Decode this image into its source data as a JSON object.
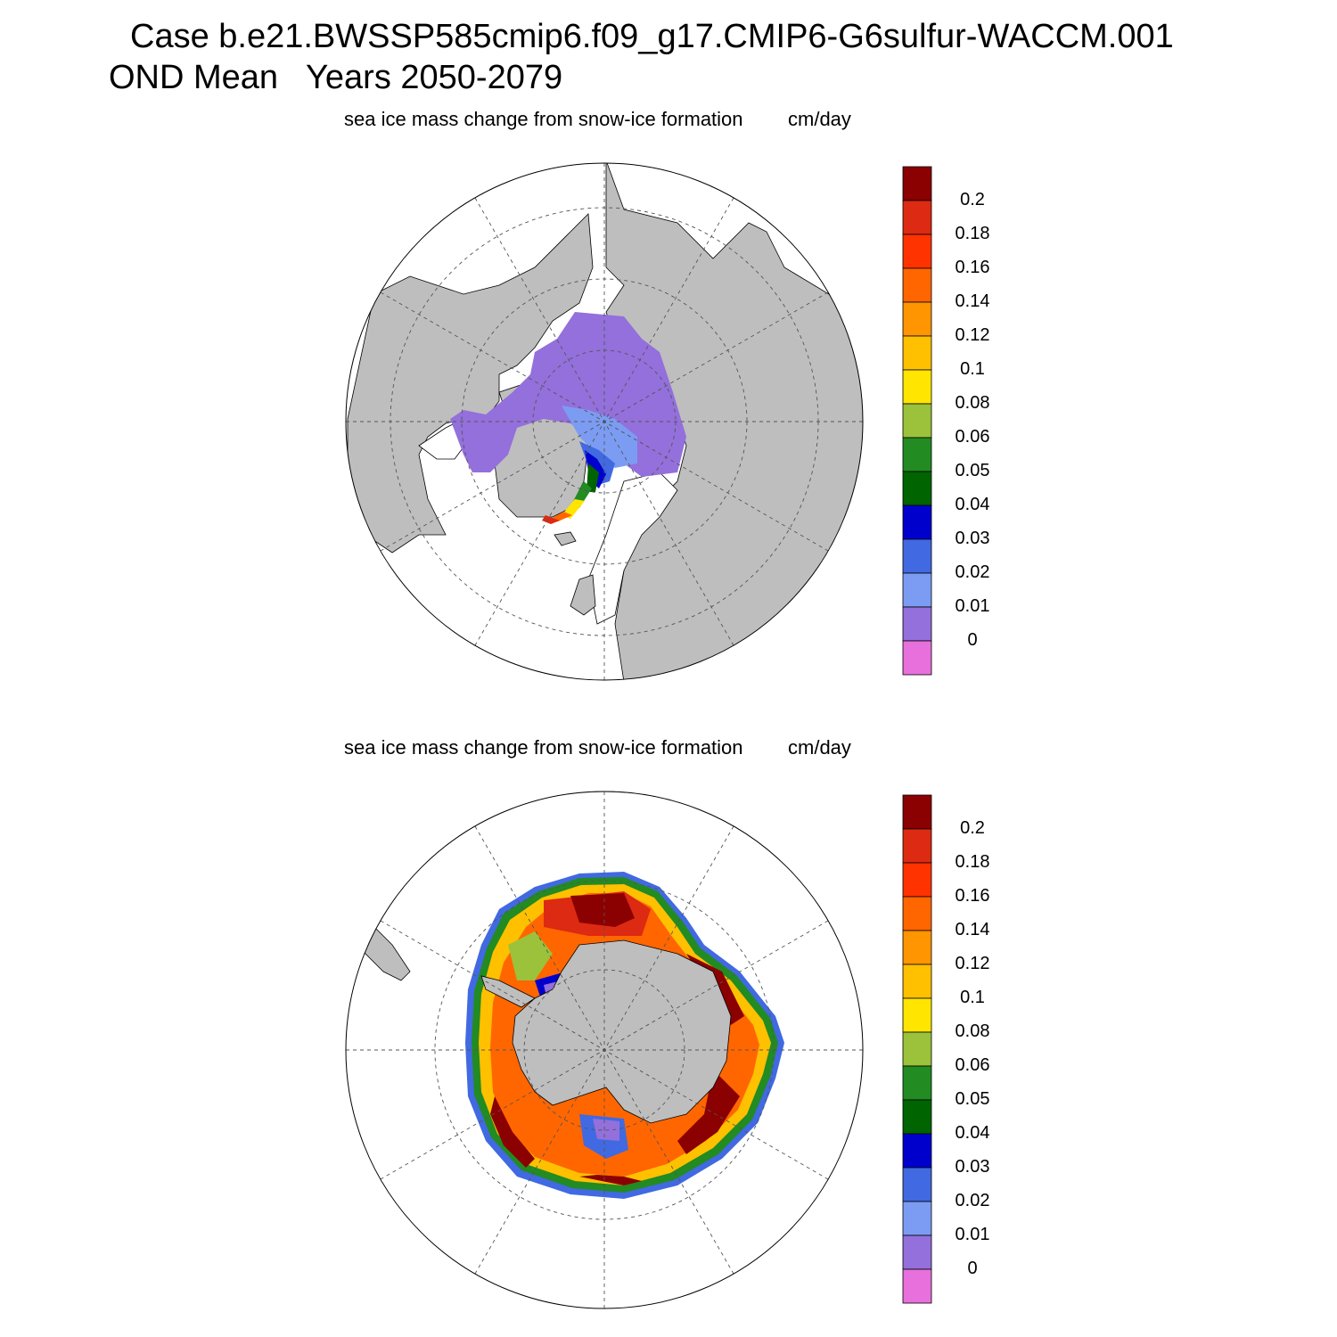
{
  "header": {
    "line1": "Case b.e21.BWSSP585cmip6.f09_g17.CMIP6-G6sulfur-WACCM.001",
    "line2": "OND Mean   Years 2050-2079"
  },
  "panels": [
    {
      "id": "north",
      "title": "sea ice mass change from snow-ice formation",
      "units": "cm/day",
      "hemisphere": "north-polar-stereographic"
    },
    {
      "id": "south",
      "title": "sea ice mass change from snow-ice formation",
      "units": "cm/day",
      "hemisphere": "south-polar-stereographic"
    }
  ],
  "colorbar": {
    "labels": [
      "0.2",
      "0.18",
      "0.16",
      "0.14",
      "0.12",
      "0.1",
      "0.08",
      "0.06",
      "0.05",
      "0.04",
      "0.03",
      "0.02",
      "0.01",
      "0"
    ],
    "colors": [
      "#8b0000",
      "#dd2a12",
      "#ff3300",
      "#ff6600",
      "#ff9500",
      "#ffc000",
      "#ffe500",
      "#9bc23a",
      "#228b22",
      "#006400",
      "#0000cd",
      "#4169e1",
      "#7b9cf2",
      "#9370db",
      "#e870dc"
    ]
  },
  "map_style": {
    "land": "#bebebe",
    "ocean": "#ffffff",
    "grid": "#555555"
  }
}
